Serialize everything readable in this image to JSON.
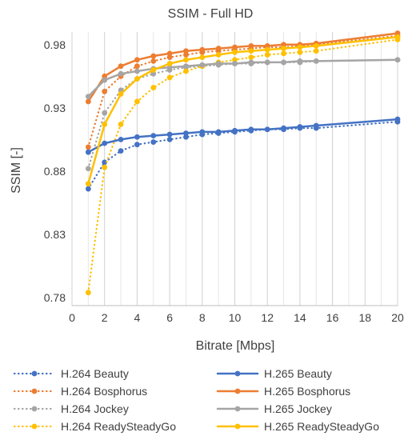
{
  "chart_data": {
    "type": "line",
    "title": "SSIM - Full HD",
    "xlabel": "Bitrate [Mbps]",
    "ylabel": "SSIM [-]",
    "xlim": [
      0,
      20
    ],
    "ylim": [
      0.78,
      0.99
    ],
    "x_ticks": [
      "0",
      "2",
      "4",
      "6",
      "8",
      "10",
      "12",
      "14",
      "16",
      "18",
      "20"
    ],
    "y_ticks": [
      "0.78",
      "0.83",
      "0.88",
      "0.93",
      "0.98"
    ],
    "grid": "vertical",
    "legend_position": "bottom",
    "series": [
      {
        "name": "H.264 Beauty",
        "color": "#4472C4",
        "style": "dotted",
        "x": [
          1,
          2,
          3,
          4,
          5,
          6,
          7,
          8,
          9,
          10,
          11,
          12,
          13,
          14,
          15,
          20
        ],
        "y": [
          0.866,
          0.887,
          0.896,
          0.901,
          0.903,
          0.905,
          0.907,
          0.909,
          0.91,
          0.911,
          0.912,
          0.913,
          0.913,
          0.914,
          0.914,
          0.919
        ]
      },
      {
        "name": "H.264 Bosphorus",
        "color": "#ED7D31",
        "style": "dotted",
        "x": [
          1,
          2,
          3,
          4,
          5,
          6,
          7,
          8,
          9,
          10,
          11,
          12,
          13,
          14,
          15,
          20
        ],
        "y": [
          0.899,
          0.943,
          0.955,
          0.963,
          0.967,
          0.97,
          0.972,
          0.974,
          0.975,
          0.976,
          0.977,
          0.978,
          0.978,
          0.979,
          0.98,
          0.987
        ]
      },
      {
        "name": "H.264 Jockey",
        "color": "#A5A5A5",
        "style": "dotted",
        "x": [
          1,
          2,
          3,
          4,
          5,
          6,
          7,
          8,
          9,
          10,
          11,
          12,
          13,
          14,
          15,
          20
        ],
        "y": [
          0.882,
          0.926,
          0.944,
          0.953,
          0.957,
          0.96,
          0.962,
          0.963,
          0.964,
          0.965,
          0.965,
          0.966,
          0.966,
          0.966,
          0.967,
          0.968
        ]
      },
      {
        "name": "H.264 ReadySteadyGo",
        "color": "#FFC000",
        "style": "dotted",
        "x": [
          1,
          2,
          3,
          4,
          5,
          6,
          7,
          8,
          9,
          10,
          11,
          12,
          13,
          14,
          15,
          20
        ],
        "y": [
          0.784,
          0.883,
          0.917,
          0.935,
          0.946,
          0.954,
          0.959,
          0.963,
          0.966,
          0.968,
          0.97,
          0.972,
          0.973,
          0.974,
          0.975,
          0.984
        ]
      },
      {
        "name": "H.265 Beauty",
        "color": "#4472C4",
        "style": "solid",
        "x": [
          1,
          2,
          3,
          4,
          5,
          6,
          7,
          8,
          9,
          10,
          11,
          12,
          13,
          14,
          15,
          20
        ],
        "y": [
          0.895,
          0.902,
          0.905,
          0.907,
          0.908,
          0.909,
          0.91,
          0.911,
          0.911,
          0.912,
          0.913,
          0.913,
          0.914,
          0.915,
          0.916,
          0.921
        ]
      },
      {
        "name": "H.265 Bosphorus",
        "color": "#ED7D31",
        "style": "solid",
        "x": [
          1,
          2,
          3,
          4,
          5,
          6,
          7,
          8,
          9,
          10,
          11,
          12,
          13,
          14,
          15,
          20
        ],
        "y": [
          0.935,
          0.955,
          0.963,
          0.968,
          0.971,
          0.973,
          0.975,
          0.976,
          0.977,
          0.978,
          0.979,
          0.979,
          0.98,
          0.98,
          0.981,
          0.989
        ]
      },
      {
        "name": "H.265 Jockey",
        "color": "#A5A5A5",
        "style": "solid",
        "x": [
          1,
          2,
          3,
          4,
          5,
          6,
          7,
          8,
          9,
          10,
          11,
          12,
          13,
          14,
          15,
          20
        ],
        "y": [
          0.939,
          0.952,
          0.957,
          0.959,
          0.961,
          0.962,
          0.963,
          0.964,
          0.965,
          0.965,
          0.966,
          0.966,
          0.966,
          0.967,
          0.967,
          0.968
        ]
      },
      {
        "name": "H.265 ReadySteadyGo",
        "color": "#FFC000",
        "style": "solid",
        "x": [
          1,
          2,
          3,
          4,
          5,
          6,
          7,
          8,
          9,
          10,
          11,
          12,
          13,
          14,
          15,
          20
        ],
        "y": [
          0.87,
          0.917,
          0.941,
          0.953,
          0.96,
          0.965,
          0.968,
          0.97,
          0.972,
          0.974,
          0.975,
          0.976,
          0.977,
          0.978,
          0.979,
          0.986
        ]
      }
    ]
  }
}
